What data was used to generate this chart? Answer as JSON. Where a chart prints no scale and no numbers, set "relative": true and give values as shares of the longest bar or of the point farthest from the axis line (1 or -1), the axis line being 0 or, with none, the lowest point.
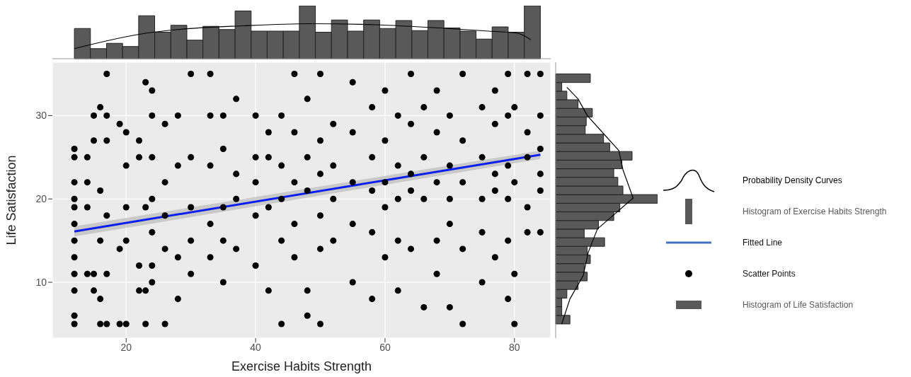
{
  "chart_data": [
    {
      "type": "histogram",
      "relative": true,
      "xlim": [
        8.6,
        85.6
      ],
      "tick_labels": false,
      "legend": "right",
      "series": [
        {
          "type": "line",
          "name": "Probability Density Curves",
          "color": "#000000",
          "x": [
            12,
            23,
            28,
            38,
            48.3,
            58.4,
            68.4,
            76,
            80.5,
            82.5
          ],
          "values": [
            0.19,
            0.48,
            0.55,
            0.62,
            0.66,
            0.64,
            0.58,
            0.52,
            0.48,
            0.36
          ]
        },
        {
          "type": "histogram",
          "name": "Histogram of Exercise Habits Strength",
          "color": "#595959",
          "bins": [
            12,
            14.48,
            16.97,
            19.45,
            21.93,
            24.41,
            26.9,
            29.38,
            31.86,
            34.34,
            36.83,
            39.31,
            41.79,
            44.28,
            46.76,
            49.24,
            51.72,
            54.21,
            56.69,
            59.17,
            61.66,
            64.14,
            66.62,
            69.1,
            71.59,
            74.07,
            76.55,
            79.03,
            81.52,
            84
          ],
          "values": [
            0.57,
            0.19,
            0.29,
            0.23,
            0.81,
            0.5,
            0.63,
            0.35,
            0.61,
            0.55,
            0.9,
            0.52,
            0.52,
            0.52,
            1,
            0.5,
            0.73,
            0.52,
            0.73,
            0.57,
            0.72,
            0.53,
            0.72,
            0.58,
            0.52,
            0.37,
            0.6,
            0.5,
            1
          ]
        }
      ]
    },
    {
      "type": "scatter",
      "xlabel": "Exercise Habits Strength",
      "ylabel": "Life Satisfaction",
      "xlim": [
        8.6,
        85.6
      ],
      "ylim": [
        3.3,
        36.4
      ],
      "xticks": [
        20,
        40,
        60,
        80
      ],
      "yticks": [
        10,
        20,
        30
      ],
      "grid": true,
      "legend": "right",
      "series": [
        {
          "type": "line",
          "name": "Fitted Line",
          "color": "#0a1ef0",
          "x": [
            12,
            84
          ],
          "values": [
            16.1,
            25.3
          ],
          "lower": [
            15.5,
            24.8
          ],
          "upper": [
            16.7,
            25.8
          ]
        },
        {
          "type": "scatter",
          "name": "Scatter Points",
          "color": "#000000",
          "marker": "circle",
          "x": [
            12,
            12,
            12,
            12,
            12,
            12,
            12,
            12,
            12,
            12,
            12,
            12,
            14,
            14,
            14,
            14,
            15,
            15,
            15,
            15,
            16,
            16,
            16,
            16,
            16,
            17,
            17,
            17,
            17,
            17,
            17,
            19,
            19,
            19,
            20,
            20,
            20,
            20,
            20,
            22,
            22,
            22,
            22,
            23,
            23,
            23,
            23,
            24,
            24,
            24,
            24,
            24,
            24,
            24,
            26,
            26,
            26,
            26,
            26,
            28,
            28,
            28,
            28,
            30,
            30,
            30,
            30,
            30,
            33,
            33,
            33,
            33,
            33,
            35,
            35,
            35,
            35,
            35,
            37,
            37,
            37,
            37,
            40,
            40,
            40,
            40,
            40,
            42,
            42,
            42,
            42,
            44,
            44,
            44,
            44,
            44,
            46,
            46,
            46,
            46,
            46,
            48,
            48,
            48,
            48,
            48,
            50,
            50,
            50,
            50,
            50,
            50,
            52,
            52,
            52,
            52,
            55,
            55,
            55,
            55,
            55,
            58,
            58,
            58,
            58,
            58,
            60,
            60,
            60,
            60,
            60,
            62,
            62,
            62,
            62,
            62,
            64,
            64,
            64,
            64,
            64,
            66,
            66,
            66,
            66,
            68,
            68,
            68,
            68,
            68,
            70,
            70,
            70,
            70,
            70,
            72,
            72,
            72,
            72,
            72,
            75,
            75,
            75,
            75,
            75,
            77,
            77,
            77,
            77,
            77,
            79,
            79,
            79,
            79,
            79,
            79,
            80,
            80,
            80,
            80,
            82,
            82,
            82,
            82,
            82,
            84,
            84,
            84,
            84,
            84,
            84
          ],
          "values": [
            5,
            6,
            9,
            11,
            13,
            15,
            17,
            19,
            20,
            22,
            25,
            26,
            25,
            22,
            19,
            11,
            30,
            27,
            9,
            11,
            31,
            21,
            15,
            8,
            5,
            35,
            30,
            27,
            18,
            11,
            5,
            29,
            14,
            5,
            28,
            24,
            19,
            15,
            5,
            27,
            25,
            12,
            9,
            34,
            19,
            9,
            5,
            33,
            30,
            25,
            20,
            16,
            12,
            10,
            29,
            22,
            18,
            14,
            5,
            30,
            24,
            13,
            8,
            35,
            25,
            19,
            15,
            11,
            35,
            30,
            24,
            17,
            13,
            30,
            26,
            19,
            15,
            10,
            32,
            23,
            20,
            14,
            30,
            25,
            22,
            18,
            12,
            28,
            25,
            19,
            9,
            30,
            24,
            20,
            15,
            5,
            35,
            28,
            22,
            17,
            13,
            32,
            25,
            21,
            9,
            6,
            35,
            27,
            23,
            18,
            14,
            5,
            29,
            24,
            20,
            15,
            34,
            28,
            22,
            17,
            10,
            31,
            25,
            21,
            16,
            8,
            33,
            27,
            22,
            19,
            13,
            30,
            24,
            20,
            15,
            9,
            35,
            29,
            23,
            21,
            14,
            31,
            25,
            20,
            7,
            33,
            28,
            22,
            15,
            11,
            30,
            24,
            20,
            17,
            7,
            35,
            27,
            22,
            14,
            5,
            31,
            25,
            20,
            16,
            10,
            33,
            29,
            23,
            21,
            13,
            35,
            30,
            24,
            20,
            15,
            8,
            31,
            22,
            5,
            11,
            35,
            28,
            25,
            19,
            16,
            35,
            30,
            26,
            23,
            21,
            16
          ]
        }
      ]
    },
    {
      "type": "histogram",
      "orientation": "horizontal",
      "relative": true,
      "ylim": [
        3.3,
        36.4
      ],
      "tick_labels": false,
      "legend": "right",
      "series": [
        {
          "type": "histogram",
          "name": "Histogram of Life Satisfaction",
          "color": "#595959",
          "bins": [
            5,
            6.03,
            7.07,
            8.1,
            9.14,
            10.17,
            11.21,
            12.24,
            13.28,
            14.31,
            15.34,
            16.38,
            17.41,
            18.45,
            19.48,
            20.52,
            21.55,
            22.59,
            23.62,
            24.66,
            25.69,
            26.72,
            27.76,
            28.79,
            29.83,
            30.86,
            31.9,
            32.93,
            33.97,
            35
          ],
          "values": [
            0.14,
            0.06,
            0.06,
            0.11,
            0.22,
            0.31,
            0.28,
            0.34,
            0.31,
            0.48,
            0.28,
            0.42,
            0.57,
            0.63,
            1,
            0.66,
            0.61,
            0.57,
            0.65,
            0.75,
            0.53,
            0.47,
            0.29,
            0.3,
            0.36,
            0.22,
            0.11,
            0.06,
            0.34
          ]
        },
        {
          "type": "line",
          "color": "#000000",
          "x": [
            5,
            8,
            10.8,
            13.6,
            16.4,
            20.1,
            23.5,
            25.8,
            27.7,
            30,
            32,
            33.4
          ],
          "values": [
            0.06,
            0.14,
            0.27,
            0.32,
            0.41,
            0.76,
            0.66,
            0.62,
            0.48,
            0.31,
            0.22,
            0.11
          ]
        }
      ]
    }
  ]
}
